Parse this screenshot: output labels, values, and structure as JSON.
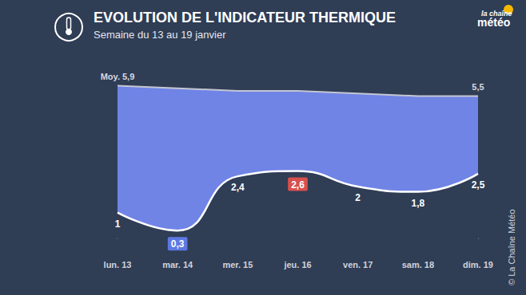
{
  "chart_data": {
    "type": "line",
    "title": "EVOLUTION DE L'INDICATEUR THERMIQUE",
    "subtitle": "Semaine du 13 au 19 janvier",
    "logo": [
      "la chaîne",
      "météo"
    ],
    "source": "© La Chaîne Météo",
    "categories": [
      "lun. 13",
      "mar. 14",
      "mer. 15",
      "jeu. 16",
      "ven. 17",
      "sam. 18",
      "dim. 19"
    ],
    "series": [
      {
        "name": "Moy.",
        "color": "#c4c6d2",
        "line_style": "solid",
        "values": [
          5.9,
          5.8,
          5.7,
          5.7,
          5.6,
          5.5,
          5.5
        ],
        "value_labels": [
          "Moy. 5,9",
          null,
          null,
          null,
          null,
          null,
          "5,5"
        ]
      },
      {
        "name": "Indicateur thermique",
        "color": "#ffffff",
        "line_style": "smooth",
        "values": [
          1,
          0.3,
          2.4,
          2.6,
          2,
          1.8,
          2.5
        ],
        "value_labels": [
          "1",
          "0,3",
          "2,4",
          "2,6",
          "2",
          "1,8",
          "2,5"
        ]
      }
    ],
    "ylim": [
      -0.4,
      6.5
    ],
    "data_labels": true,
    "tick_labels": "x",
    "grid": false
  }
}
